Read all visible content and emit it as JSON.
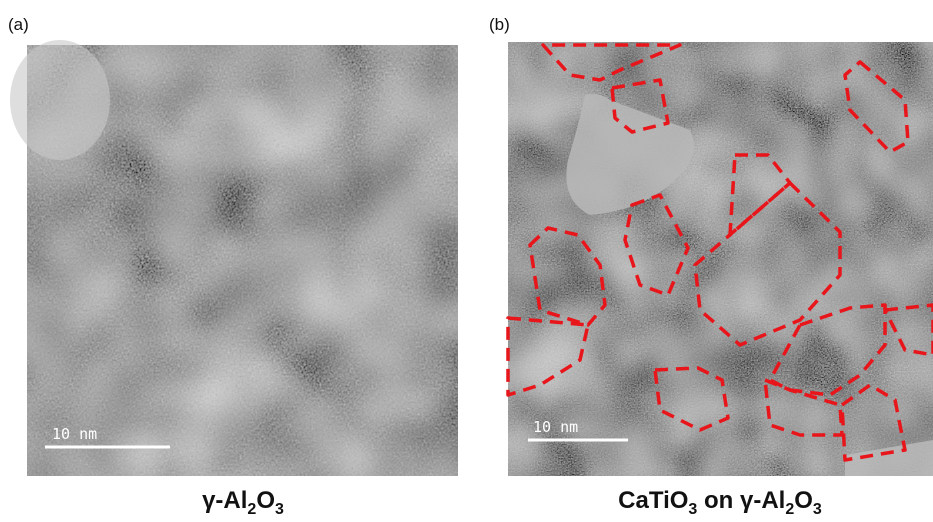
{
  "panels": [
    {
      "label": "(a)",
      "scale_bar": "10 nm",
      "caption_parts": [
        "γ-Al",
        "2",
        "O",
        "3"
      ]
    },
    {
      "label": "(b)",
      "scale_bar": "10 nm",
      "caption_parts": [
        "CaTiO",
        "3",
        " on γ-Al",
        "2",
        "O",
        "3"
      ]
    }
  ]
}
